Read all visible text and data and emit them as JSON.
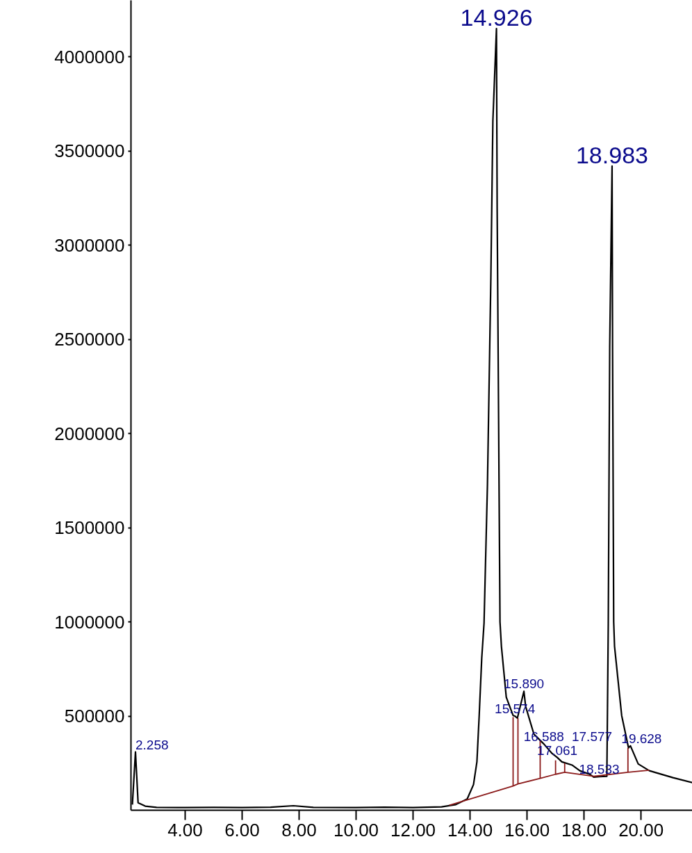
{
  "chart_data": {
    "type": "line",
    "xlim": [
      2.1,
      21.8
    ],
    "ylim": [
      0,
      4300000
    ],
    "xticks": [
      {
        "value": 4,
        "label": "4.00"
      },
      {
        "value": 6,
        "label": "6.00"
      },
      {
        "value": 8,
        "label": "8.00"
      },
      {
        "value": 10,
        "label": "10.00"
      },
      {
        "value": 12,
        "label": "12.00"
      },
      {
        "value": 14,
        "label": "14.00"
      },
      {
        "value": 16,
        "label": "16.00"
      },
      {
        "value": 18,
        "label": "18.00"
      },
      {
        "value": 20,
        "label": "20.00"
      }
    ],
    "yticks": [
      500000,
      1000000,
      1500000,
      2000000,
      2500000,
      3000000,
      3500000,
      4000000
    ],
    "grid": false,
    "marker": "none",
    "line_style": "solid",
    "series": [
      {
        "color": "#000000",
        "x": [
          2.15,
          2.258,
          2.35,
          2.6,
          3.0,
          4.0,
          5.0,
          6.0,
          7.0,
          7.8,
          8.5,
          10.0,
          11.0,
          12.0,
          13.0,
          13.5,
          13.9,
          14.12,
          14.24,
          14.32,
          14.41,
          14.49,
          14.61,
          14.73,
          14.8,
          14.926,
          14.95,
          15.0,
          15.05,
          15.1,
          15.27,
          15.51,
          15.574,
          15.66,
          15.89,
          15.95,
          16.24,
          16.588,
          16.88,
          17.061,
          17.22,
          17.577,
          17.85,
          18.2,
          18.34,
          18.533,
          18.8,
          18.85,
          18.9,
          18.983,
          19.0,
          19.04,
          19.07,
          19.32,
          19.56,
          19.628,
          19.9,
          20.29,
          21.12,
          21.8
        ],
        "values": [
          30000,
          310000,
          40000,
          22000,
          15000,
          14000,
          15000,
          14000,
          16000,
          24000,
          15000,
          14000,
          16000,
          14000,
          18000,
          30000,
          60000,
          136000,
          257000,
          503000,
          809000,
          993000,
          1730000,
          2830000,
          3660000,
          4150000,
          3200000,
          2100000,
          1000000,
          870000,
          600000,
          503000,
          500000,
          489000,
          632000,
          551000,
          404000,
          352000,
          301000,
          280000,
          257000,
          240000,
          210000,
          191000,
          176000,
          178000,
          180000,
          990000,
          2460000,
          3420000,
          2460000,
          1000000,
          870000,
          503000,
          331000,
          342000,
          246000,
          210000,
          173000,
          147000
        ]
      },
      {
        "color": "#8b1a1a",
        "x": [
          13.27,
          15.51,
          15.68,
          16.46,
          17.0,
          17.32,
          18.34,
          19.54,
          20.29
        ],
        "values": [
          26000,
          129000,
          140000,
          169000,
          191000,
          202000,
          180000,
          202000,
          213000
        ]
      },
      {
        "color": "#8b1a1a",
        "x": [
          15.51,
          15.51
        ],
        "values": [
          129000,
          495000
        ]
      },
      {
        "color": "#8b1a1a",
        "x": [
          15.68,
          15.68
        ],
        "values": [
          140000,
          489000
        ]
      },
      {
        "color": "#8b1a1a",
        "x": [
          16.46,
          16.46
        ],
        "values": [
          169000,
          370000
        ]
      },
      {
        "color": "#8b1a1a",
        "x": [
          17.0,
          17.0
        ],
        "values": [
          191000,
          265000
        ]
      },
      {
        "color": "#8b1a1a",
        "x": [
          17.32,
          17.32
        ],
        "values": [
          202000,
          250000
        ]
      },
      {
        "color": "#8b1a1a",
        "x": [
          19.54,
          19.54
        ],
        "values": [
          202000,
          331000
        ]
      }
    ],
    "annotations": [
      {
        "text": "14.926",
        "x": 14.926,
        "y": 4150000
      },
      {
        "text": "18.983",
        "x": 18.983,
        "y": 3420000
      },
      {
        "text": "2.258",
        "x": 2.258,
        "y": 310000
      },
      {
        "text": "15.890",
        "x": 15.89,
        "y": 632000
      },
      {
        "text": "15.574",
        "x": 15.574,
        "y": 500000
      },
      {
        "text": "16.588",
        "x": 16.588,
        "y": 352000
      },
      {
        "text": "17.061",
        "x": 17.061,
        "y": 280000
      },
      {
        "text": "17.577",
        "x": 17.577,
        "y": 240000
      },
      {
        "text": "18.533",
        "x": 18.533,
        "y": 178000
      },
      {
        "text": "19.628",
        "x": 19.628,
        "y": 342000
      }
    ]
  }
}
